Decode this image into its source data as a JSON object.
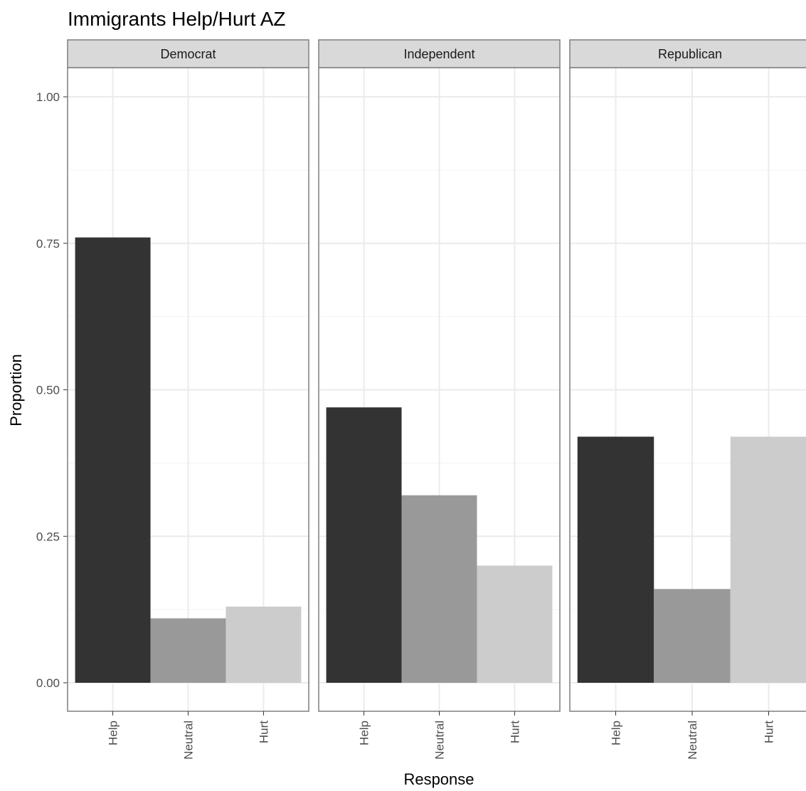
{
  "chart_data": {
    "type": "bar",
    "title": "Immigrants Help/Hurt AZ",
    "xlabel": "Response",
    "ylabel": "Proportion",
    "ylim": [
      0,
      1.05
    ],
    "yticks": [
      0,
      0.25,
      0.5,
      0.75,
      1
    ],
    "ytick_labels": [
      "0.00",
      "0.25",
      "0.50",
      "0.75",
      "1.00"
    ],
    "categories": [
      "Help",
      "Neutral",
      "Hurt"
    ],
    "bar_colors": [
      "#333333",
      "#999999",
      "#cccccc"
    ],
    "grid": true,
    "legend": "none",
    "facets": [
      {
        "label": "Democrat",
        "values": [
          0.76,
          0.11,
          0.13
        ]
      },
      {
        "label": "Independent",
        "values": [
          0.47,
          0.32,
          0.2
        ]
      },
      {
        "label": "Republican",
        "values": [
          0.42,
          0.16,
          0.42
        ]
      }
    ]
  }
}
